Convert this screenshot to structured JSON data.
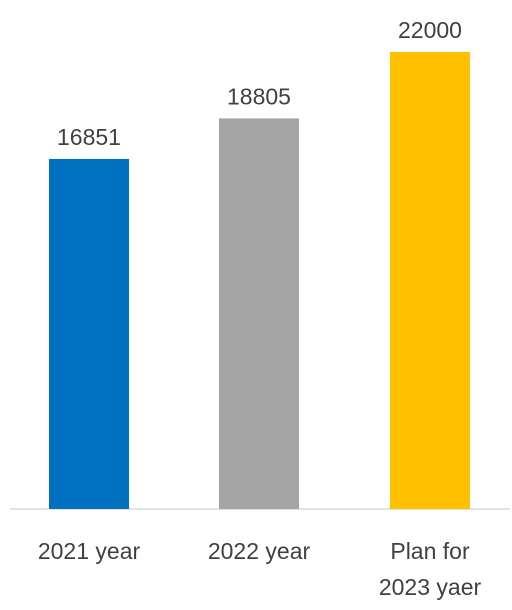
{
  "chart_data": {
    "type": "bar",
    "title": "",
    "xlabel": "",
    "ylabel": "",
    "categories": [
      [
        "2021 year"
      ],
      [
        "2022 year"
      ],
      [
        "Plan for",
        "2023 yaer"
      ]
    ],
    "values": [
      16851,
      18805,
      22000
    ],
    "colors": [
      "#0070C0",
      "#A5A5A5",
      "#FFC000"
    ],
    "ylim": [
      0,
      22000
    ],
    "grid": false,
    "legend": "none",
    "data_labels": true
  }
}
